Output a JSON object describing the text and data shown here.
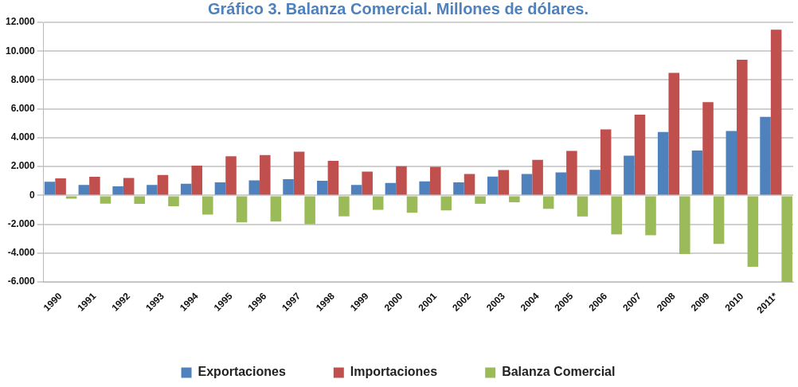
{
  "chart_data": {
    "type": "bar",
    "title": "Gráfico 3. Balanza Comercial. Millones de dólares.",
    "categories": [
      "1990",
      "1991",
      "1992",
      "1993",
      "1994",
      "1995",
      "1996",
      "1997",
      "1998",
      "1999",
      "2000",
      "2001",
      "2002",
      "2003",
      "2004",
      "2005",
      "2006",
      "2007",
      "2008",
      "2009",
      "2010",
      "2011*"
    ],
    "series": [
      {
        "name": "Exportaciones",
        "color": "#4f81bd",
        "values": [
          950,
          720,
          630,
          720,
          810,
          900,
          1040,
          1120,
          1010,
          720,
          860,
          980,
          900,
          1300,
          1490,
          1590,
          1780,
          2760,
          4400,
          3110,
          4470,
          5450
        ]
      },
      {
        "name": "Importaciones",
        "color": "#c0504d",
        "values": [
          1180,
          1290,
          1210,
          1420,
          2070,
          2710,
          2800,
          3030,
          2400,
          1650,
          2030,
          1980,
          1480,
          1760,
          2470,
          3090,
          4570,
          5600,
          8500,
          6460,
          9400,
          11490
        ]
      },
      {
        "name": "Balanza Comercial",
        "color": "#9bbb59",
        "values": [
          -230,
          -570,
          -580,
          -750,
          -1330,
          -1870,
          -1810,
          -1990,
          -1450,
          -1000,
          -1200,
          -1040,
          -580,
          -475,
          -930,
          -1460,
          -2700,
          -2760,
          -4060,
          -3360,
          -4950,
          -6000
        ]
      }
    ],
    "ylim": [
      -6000,
      12000
    ],
    "yticks": [
      {
        "value": -6000,
        "label": "-6.000"
      },
      {
        "value": -4000,
        "label": "-4.000"
      },
      {
        "value": -2000,
        "label": "-2.000"
      },
      0,
      {
        "value": 2000,
        "label": "2.000"
      },
      {
        "value": 4000,
        "label": "4.000"
      },
      {
        "value": 6000,
        "label": "6.000"
      },
      {
        "value": 8000,
        "label": "8.000"
      },
      {
        "value": 10000,
        "label": "10.000"
      },
      {
        "value": 12000,
        "label": "12.000"
      }
    ],
    "grid": "y",
    "legend": "bottom"
  }
}
